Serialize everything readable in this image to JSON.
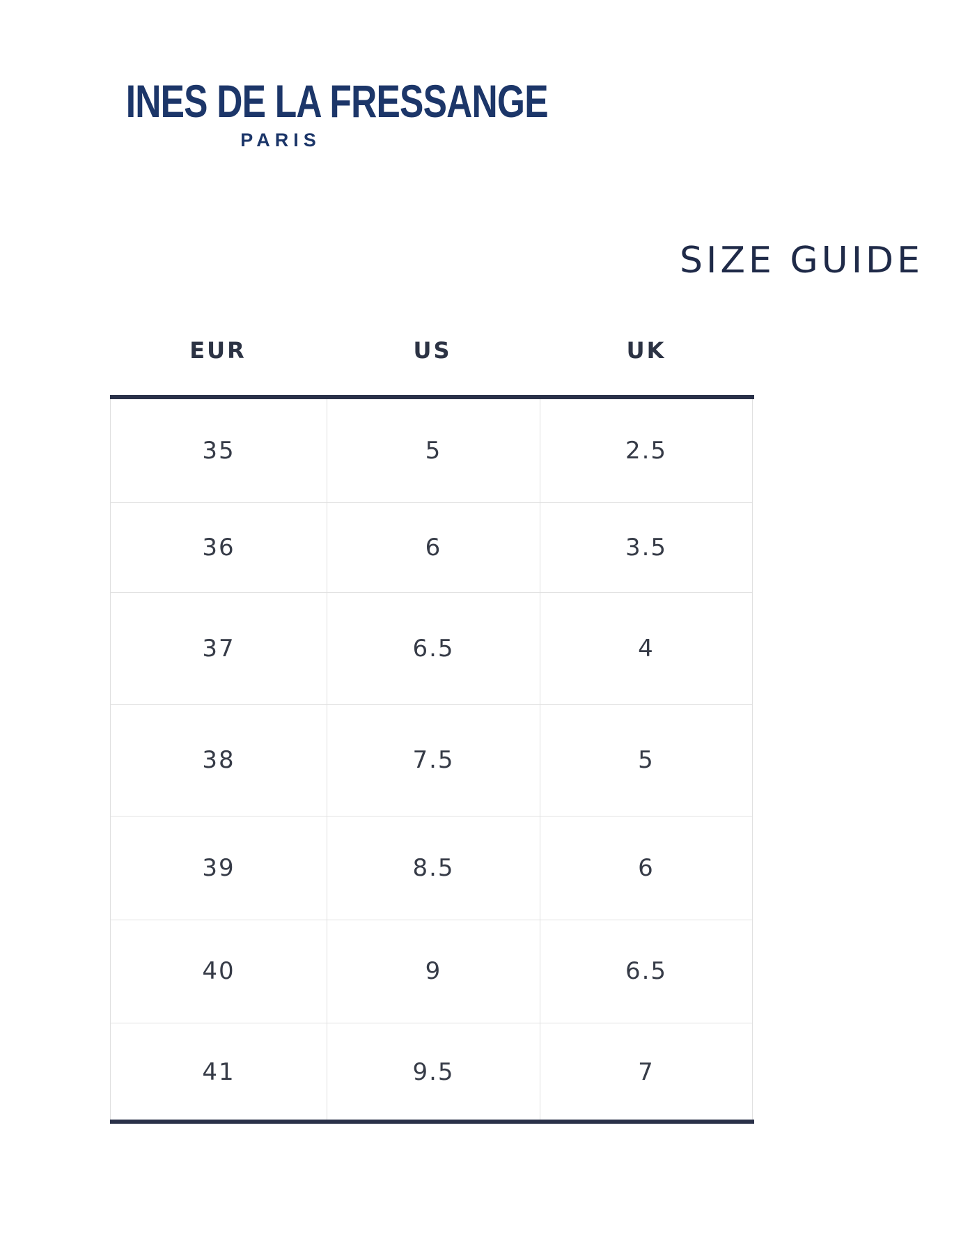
{
  "brand": {
    "name": "INES DE LA FRESSANGE",
    "city": "PARIS",
    "color": "#1c3669"
  },
  "title": "SIZE GUIDE",
  "table": {
    "headers": [
      "EUR",
      "US",
      "UK"
    ],
    "rows": [
      [
        "35",
        "5",
        "2.5"
      ],
      [
        "36",
        "6",
        "3.5"
      ],
      [
        "37",
        "6.5",
        "4"
      ],
      [
        "38",
        "7.5",
        "5"
      ],
      [
        "39",
        "8.5",
        "6"
      ],
      [
        "40",
        "9",
        "6.5"
      ],
      [
        "41",
        "9.5",
        "7"
      ]
    ]
  }
}
